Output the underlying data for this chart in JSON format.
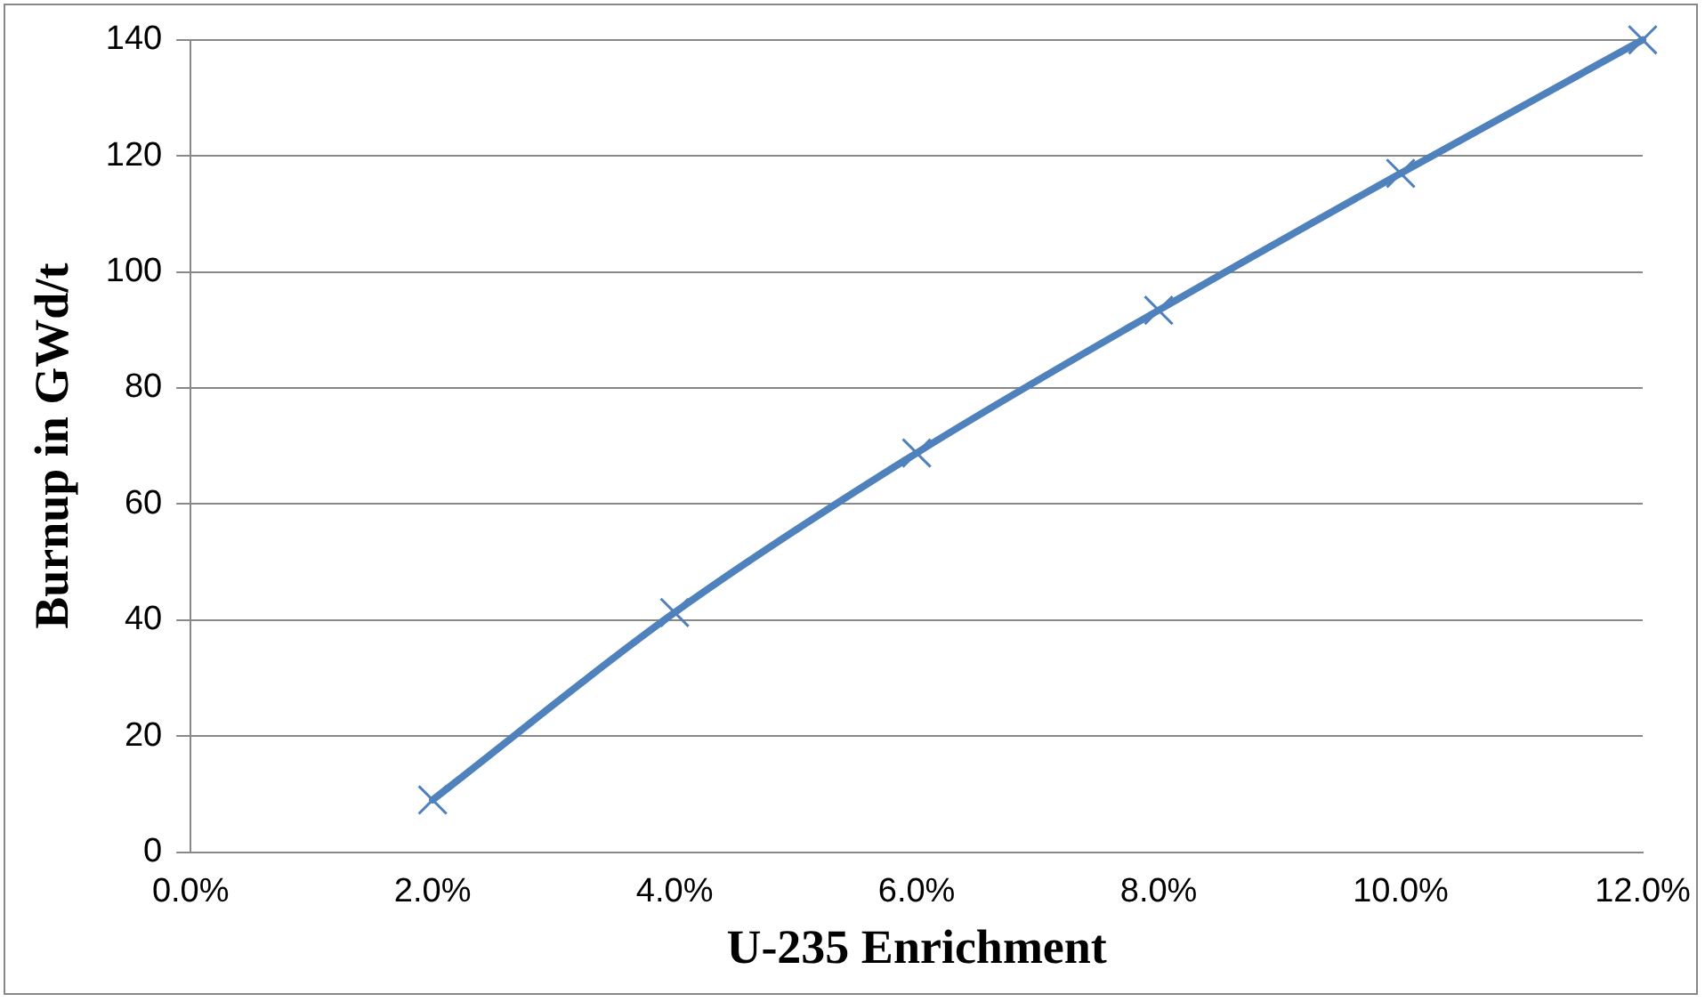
{
  "chart_data": {
    "type": "line",
    "xlabel": "U-235 Enrichment",
    "ylabel": "Burnup in GWd/t",
    "x": [
      2,
      4,
      6,
      8,
      10,
      12
    ],
    "series": [
      {
        "color": "#4f81bd",
        "values": [
          9,
          41.3,
          68.8,
          93.4,
          117,
          140
        ]
      }
    ],
    "xlim": [
      0,
      12
    ],
    "xticks": [
      {
        "value": 0,
        "label": "0.0%"
      },
      {
        "value": 2,
        "label": "2.0%"
      },
      {
        "value": 4,
        "label": "4.0%"
      },
      {
        "value": 6,
        "label": "6.0%"
      },
      {
        "value": 8,
        "label": "8.0%"
      },
      {
        "value": 10,
        "label": "10.0%"
      },
      {
        "value": 12,
        "label": "12.0%"
      }
    ],
    "ylim": [
      0,
      140
    ],
    "yticks": [
      0,
      20,
      40,
      60,
      80,
      100,
      120,
      140
    ],
    "grid": "y",
    "legend": false,
    "marker": "cross",
    "line_style": "solid"
  }
}
